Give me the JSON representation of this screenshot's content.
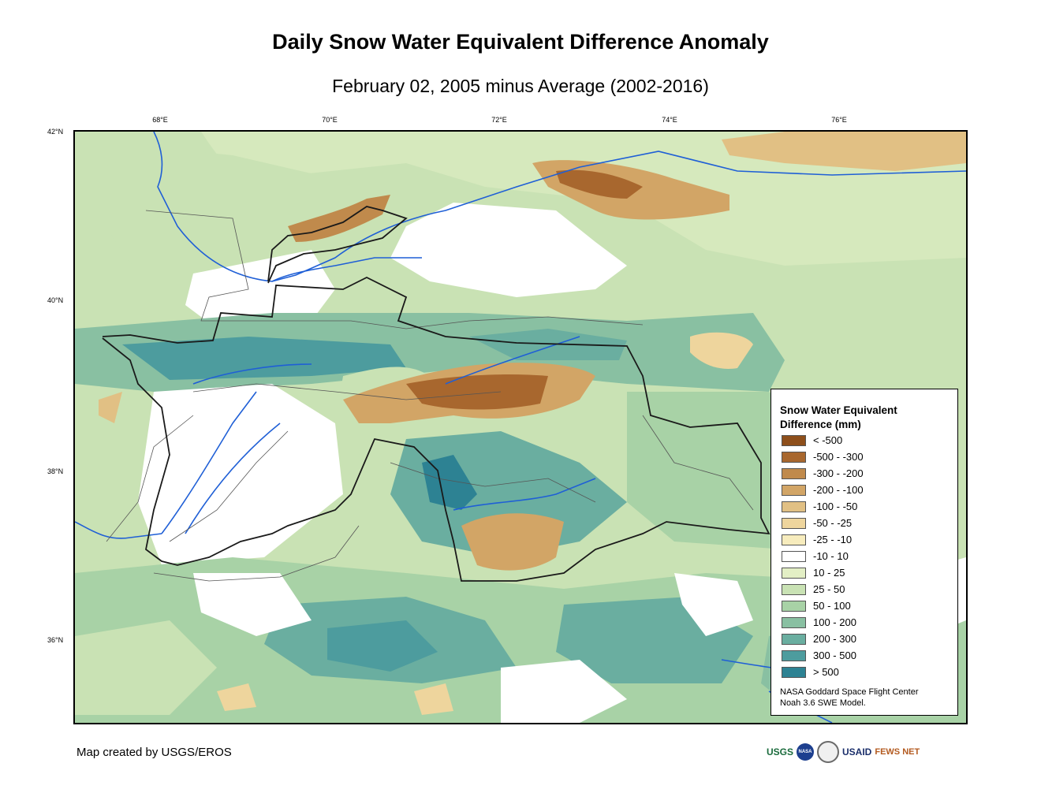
{
  "title": "Daily Snow Water Equivalent Difference Anomaly",
  "subtitle": "February 02, 2005 minus Average (2002-2016)",
  "axes": {
    "lon_ticks": [
      "68°E",
      "70°E",
      "72°E",
      "74°E",
      "76°E"
    ],
    "lat_ticks": [
      "42°N",
      "40°N",
      "38°N",
      "36°N"
    ],
    "lon_range": [
      67.0,
      77.5
    ],
    "lat_range": [
      35.0,
      42.0
    ]
  },
  "legend": {
    "title": "Snow Water Equivalent Difference (mm)",
    "items": [
      {
        "label": "< -500",
        "color": "#8e4f1b"
      },
      {
        "label": "-500 - -300",
        "color": "#a8672e"
      },
      {
        "label": "-300 - -200",
        "color": "#c08a4c"
      },
      {
        "label": "-200 - -100",
        "color": "#d2a566"
      },
      {
        "label": "-100 - -50",
        "color": "#e1c084"
      },
      {
        "label": "-50 - -25",
        "color": "#eed59d"
      },
      {
        "label": "-25 - -10",
        "color": "#f7ecbd"
      },
      {
        "label": "-10 - 10",
        "color": "#ffffff"
      },
      {
        "label": "10 - 25",
        "color": "#e3efc5"
      },
      {
        "label": "25 - 50",
        "color": "#c9e2b4"
      },
      {
        "label": "50 - 100",
        "color": "#a8d2a6"
      },
      {
        "label": "100 - 200",
        "color": "#89c0a2"
      },
      {
        "label": "200 - 300",
        "color": "#6aaea0"
      },
      {
        "label": "300 - 500",
        "color": "#4d9c9e"
      },
      {
        "label": "> 500",
        "color": "#2d8293"
      }
    ],
    "credit_line1": "NASA Goddard Space Flight Center",
    "credit_line2": "Noah 3.6 SWE Model."
  },
  "footer": {
    "credit": "Map created by USGS/EROS",
    "logos": [
      "USGS",
      "NASA",
      "USAID",
      "FEWS NET"
    ]
  },
  "colors": {
    "rivers": "#1f5fd6",
    "boundaries_major": "#1a1a1a",
    "boundaries_minor": "#555555"
  }
}
